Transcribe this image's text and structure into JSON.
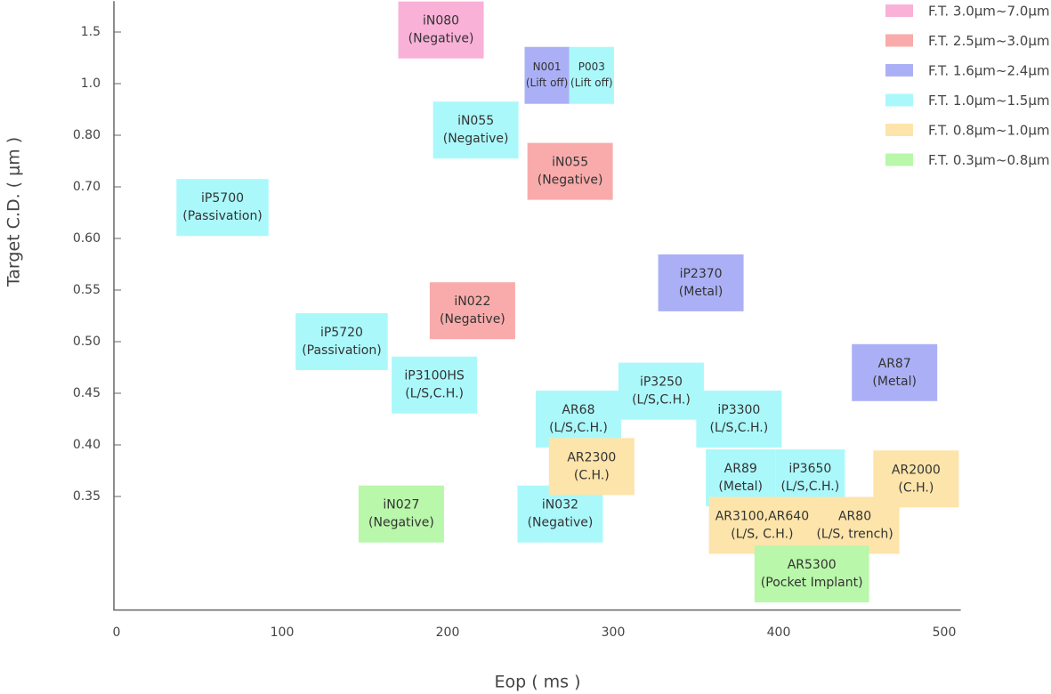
{
  "chart_data": {
    "type": "scatter",
    "x_label": "Eop ( ms )",
    "y_label": "Target C.D. ( μm )",
    "xlim": [
      -2,
      510
    ],
    "xticks": [
      0,
      100,
      200,
      300,
      400,
      500
    ],
    "ylim": [
      0.24,
      1.8
    ],
    "yticks": [
      1.5,
      {
        "value": 1.0,
        "label": "1.0"
      },
      {
        "value": 0.8,
        "label": "0.80"
      },
      {
        "value": 0.7,
        "label": "0.70"
      },
      {
        "value": 0.6,
        "label": "0.60"
      },
      0.55,
      {
        "value": 0.5,
        "label": "0.50"
      },
      0.45,
      {
        "value": 0.4,
        "label": "0.40"
      },
      0.35
    ],
    "series": [
      {
        "name": "F.T. 3.0μm~7.0μm",
        "color": "#f9b1d8",
        "x": [
          196
        ],
        "y": [
          1.52
        ],
        "labels": [
          [
            "iN080",
            "(Negative)"
          ]
        ]
      },
      {
        "name": "F.T. 2.5μm~3.0μm",
        "color": "#f9abab",
        "x": [
          274,
          215
        ],
        "y": [
          0.73,
          0.53
        ],
        "labels": [
          [
            "iN055",
            "(Negative)"
          ],
          [
            "iN022",
            "(Negative)"
          ]
        ]
      },
      {
        "name": "F.T. 1.6μm~2.4μm",
        "color": "#abb0f6",
        "x": [
          260,
          353,
          470
        ],
        "y": [
          1.08,
          0.557,
          0.47
        ],
        "labels": [
          [
            "N001",
            "(Lift off)"
          ],
          [
            "iP2370",
            "(Metal)"
          ],
          [
            "AR87",
            "(Metal)"
          ]
        ]
      },
      {
        "name": "F.T. 1.0μm~1.5μm",
        "color": "#abf8fb",
        "x": [
          287,
          217,
          64,
          136,
          192,
          329,
          279,
          376,
          377,
          419,
          268
        ],
        "y": [
          1.08,
          0.82,
          0.66,
          0.5,
          0.458,
          0.452,
          0.425,
          0.425,
          0.368,
          0.368,
          0.333
        ],
        "labels": [
          [
            "P003",
            "(Lift off)"
          ],
          [
            "iN055",
            "(Negative)"
          ],
          [
            "iP5700",
            "(Passivation)"
          ],
          [
            "iP5720",
            "(Passivation)"
          ],
          [
            "iP3100HS",
            "(L/S,C.H.)"
          ],
          [
            "iP3250",
            "(L/S,C.H.)"
          ],
          [
            "AR68",
            "(L/S,C.H.)"
          ],
          [
            "iP3300",
            "(L/S,C.H.)"
          ],
          [
            "AR89",
            "(Metal)"
          ],
          [
            "iP3650",
            "(L/S,C.H.)"
          ],
          [
            "iN032",
            "(Negative)"
          ]
        ]
      },
      {
        "name": "F.T. 0.8μm~1.0μm",
        "color": "#fde4aa",
        "x": [
          287,
          483,
          390,
          446
        ],
        "y": [
          0.379,
          0.367,
          0.322,
          0.322
        ],
        "labels": [
          [
            "AR2300",
            "(C.H.)"
          ],
          [
            "AR2000",
            "(C.H.)"
          ],
          [
            "AR3100,AR640",
            "(L/S, C.H.)"
          ],
          [
            "AR80",
            "(L/S, trench)"
          ]
        ]
      },
      {
        "name": "F.T. 0.3μm~0.8μm",
        "color": "#b9f7aa",
        "x": [
          172,
          420
        ],
        "y": [
          0.333,
          0.275
        ],
        "labels": [
          [
            "iN027",
            "(Negative)"
          ],
          [
            "AR5300",
            "(Pocket Implant)"
          ]
        ]
      }
    ],
    "legend": "top-right"
  }
}
